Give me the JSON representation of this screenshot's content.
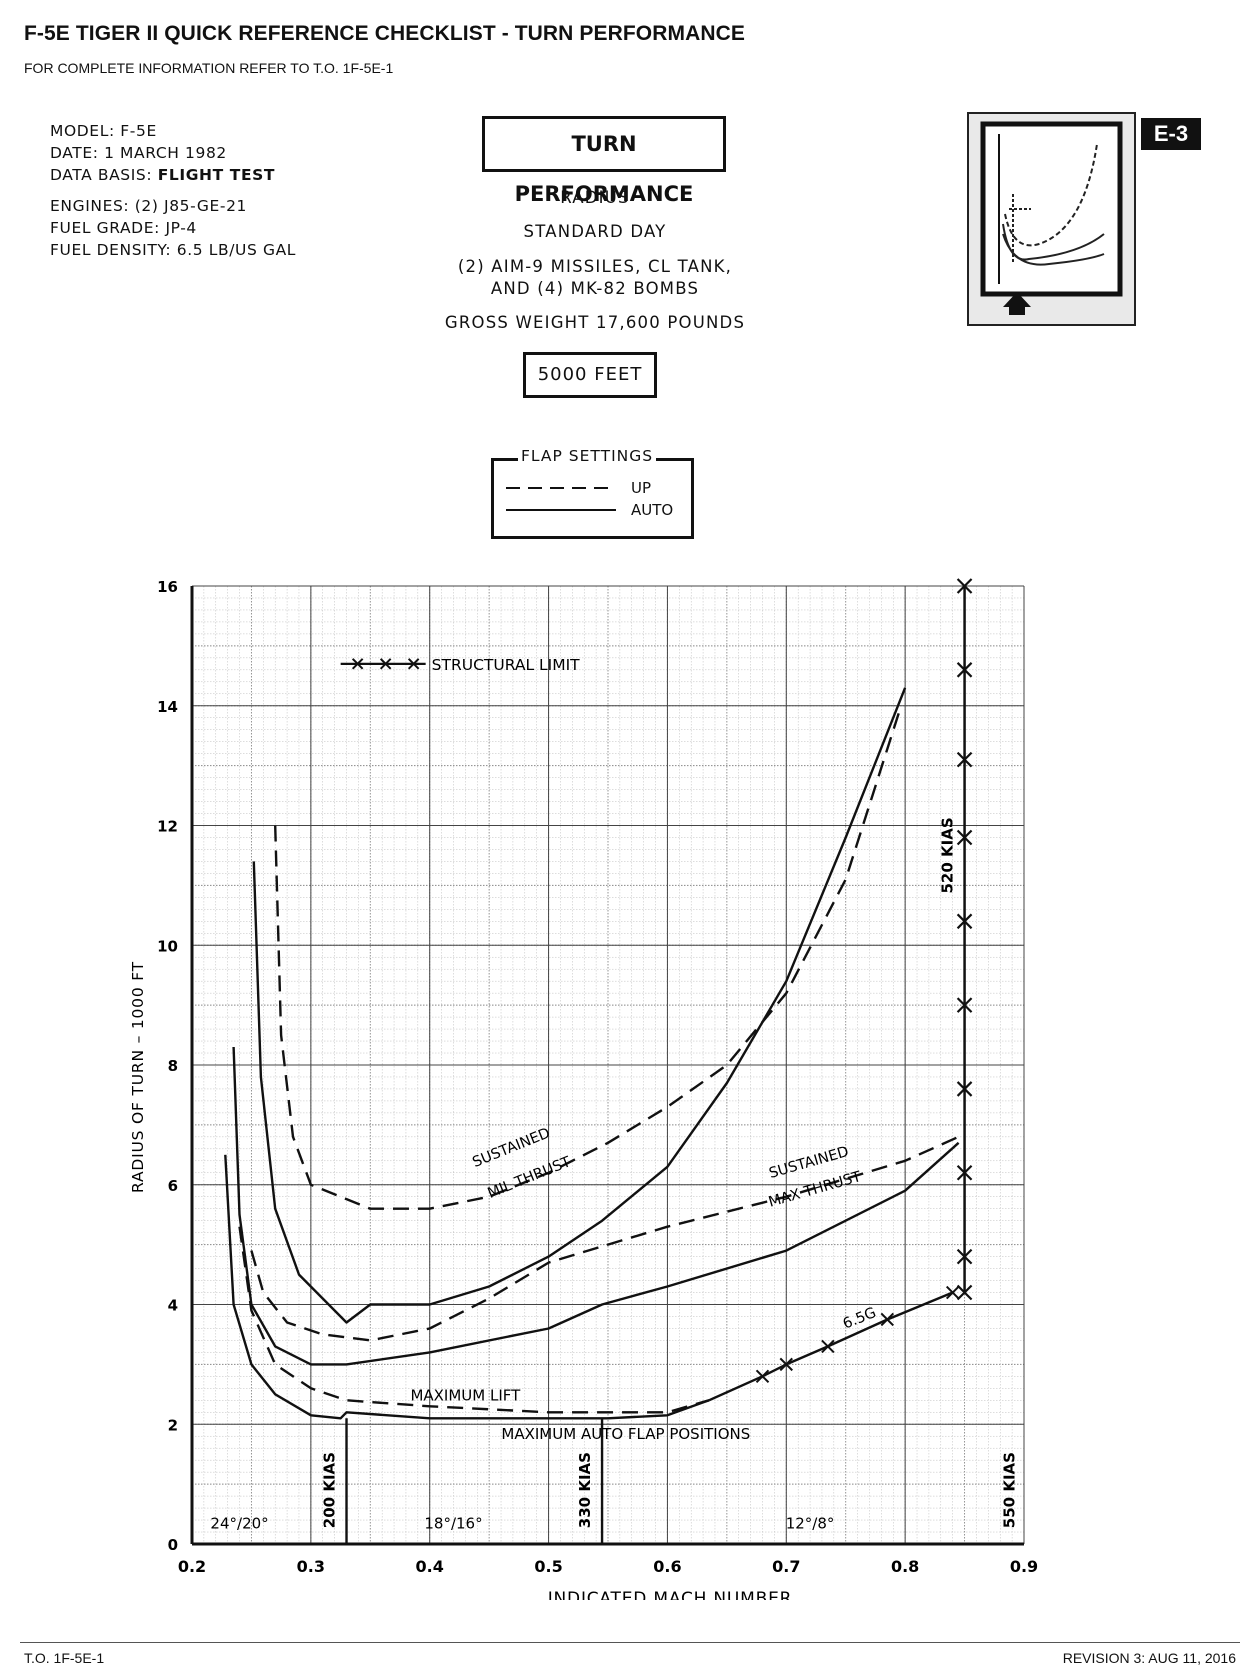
{
  "header": {
    "title": "F-5E TIGER II QUICK REFERENCE CHECKLIST - TURN PERFORMANCE",
    "subtitle": "FOR COMPLETE INFORMATION REFER TO T.O. 1F-5E-1"
  },
  "meta": {
    "model": "MODEL:  F-5E",
    "date": "DATE:  1 MARCH 1982",
    "data_basis_label": "DATA BASIS:",
    "data_basis_value": "FLIGHT TEST",
    "engines": "ENGINES:  (2) J85-GE-21",
    "fuel_grade": "FUEL GRADE:  JP-4",
    "fuel_density": "FUEL DENSITY:  6.5 LB/US GAL"
  },
  "center": {
    "box_title": "TURN PERFORMANCE",
    "line1": "RADIUS",
    "line2": "STANDARD DAY",
    "line3": "(2) AIM-9 MISSILES, CL TANK,",
    "line4": "AND (4) MK-82 BOMBS",
    "line5": "GROSS WEIGHT 17,600 POUNDS",
    "altitude": "5000 FEET"
  },
  "badge": "E-3",
  "legend": {
    "title": "FLAP SETTINGS",
    "up": "UP",
    "auto": "AUTO"
  },
  "footer": {
    "left": "T.O. 1F-5E-1",
    "right": "REVISION 3: AUG 11, 2016"
  },
  "chart_data": {
    "type": "line",
    "xlabel": "INDICATED MACH NUMBER",
    "ylabel": "RADIUS OF TURN – 1000 FT",
    "xlim": [
      0.2,
      0.9
    ],
    "ylim": [
      0,
      16
    ],
    "xticks": [
      "0.2",
      "0.3",
      "0.4",
      "0.5",
      "0.6",
      "0.7",
      "0.8",
      "0.9"
    ],
    "yticks": [
      "0",
      "2",
      "4",
      "6",
      "8",
      "10",
      "12",
      "14",
      "16"
    ],
    "grid": true,
    "series": [
      {
        "name": "SUSTAINED MIL THRUST",
        "flap": "AUTO",
        "x": [
          0.252,
          0.258,
          0.27,
          0.29,
          0.31,
          0.33,
          0.35,
          0.4,
          0.45,
          0.5,
          0.545,
          0.6,
          0.65,
          0.7,
          0.75,
          0.8
        ],
        "y": [
          11.4,
          7.8,
          5.6,
          4.5,
          4.1,
          3.7,
          4.0,
          4.0,
          4.3,
          4.8,
          5.4,
          6.3,
          7.7,
          9.4,
          11.8,
          14.3
        ]
      },
      {
        "name": "SUSTAINED MIL THRUST",
        "flap": "UP",
        "x": [
          0.27,
          0.275,
          0.285,
          0.3,
          0.35,
          0.4,
          0.45,
          0.5,
          0.55,
          0.6,
          0.65,
          0.7,
          0.75,
          0.795
        ],
        "y": [
          12.0,
          8.5,
          6.8,
          6.0,
          5.6,
          5.6,
          5.8,
          6.2,
          6.7,
          7.3,
          8.0,
          9.2,
          11.1,
          13.9
        ]
      },
      {
        "name": "SUSTAINED MAX THRUST",
        "flap": "AUTO",
        "x": [
          0.235,
          0.24,
          0.25,
          0.27,
          0.3,
          0.33,
          0.4,
          0.5,
          0.545,
          0.6,
          0.7,
          0.8,
          0.845
        ],
        "y": [
          8.3,
          5.5,
          4.0,
          3.3,
          3.0,
          3.0,
          3.2,
          3.6,
          4.0,
          4.3,
          4.9,
          5.9,
          6.7
        ]
      },
      {
        "name": "SUSTAINED MAX THRUST",
        "flap": "UP",
        "x": [
          0.25,
          0.26,
          0.28,
          0.31,
          0.35,
          0.4,
          0.45,
          0.5,
          0.55,
          0.6,
          0.7,
          0.8,
          0.845
        ],
        "y": [
          4.9,
          4.2,
          3.7,
          3.5,
          3.4,
          3.6,
          4.1,
          4.7,
          5.0,
          5.3,
          5.8,
          6.4,
          6.8
        ]
      },
      {
        "name": "MAXIMUM LIFT",
        "flap": "UP",
        "x": [
          0.24,
          0.25,
          0.27,
          0.3,
          0.33,
          0.4,
          0.5,
          0.6,
          0.635
        ],
        "y": [
          5.3,
          3.9,
          3.0,
          2.6,
          2.4,
          2.3,
          2.2,
          2.2,
          2.4
        ]
      },
      {
        "name": "MAXIMUM AUTO FLAP POSITIONS",
        "flap": "AUTO",
        "x": [
          0.228,
          0.235,
          0.25,
          0.27,
          0.3,
          0.325,
          0.33,
          0.4,
          0.5,
          0.55,
          0.6,
          0.635
        ],
        "y": [
          6.5,
          4.0,
          3.0,
          2.5,
          2.15,
          2.1,
          2.2,
          2.1,
          2.1,
          2.1,
          2.15,
          2.4
        ]
      },
      {
        "name": "6.5G",
        "flap": "AUTO",
        "x": [
          0.635,
          0.68,
          0.7,
          0.735,
          0.785,
          0.84
        ],
        "y": [
          2.4,
          2.8,
          3.0,
          3.3,
          3.75,
          4.2
        ]
      },
      {
        "name": "STRUCTURAL LIMIT",
        "flap": "",
        "x": [
          0.85,
          0.85,
          0.85,
          0.85,
          0.85,
          0.85,
          0.85,
          0.85,
          0.85,
          0.85
        ],
        "y": [
          4.8,
          6.2,
          7.6,
          9.0,
          10.4,
          11.8,
          13.1,
          14.6,
          16.0,
          4.2
        ]
      }
    ],
    "speed_lines": [
      {
        "label": "200 KIAS",
        "x": 0.33
      },
      {
        "label": "330 KIAS",
        "x": 0.545
      },
      {
        "label": "550 KIAS",
        "x": 0.85
      },
      {
        "label": "520 KIAS",
        "x": 0.85
      }
    ],
    "flap_ranges": [
      "24°/20°",
      "18°/16°",
      "12°/8°"
    ],
    "annotations": [
      "STRUCTURAL LIMIT",
      "SUSTAINED MIL THRUST",
      "SUSTAINED MAX THRUST",
      "MAXIMUM LIFT",
      "MAXIMUM AUTO FLAP POSITIONS",
      "6.5G"
    ]
  }
}
